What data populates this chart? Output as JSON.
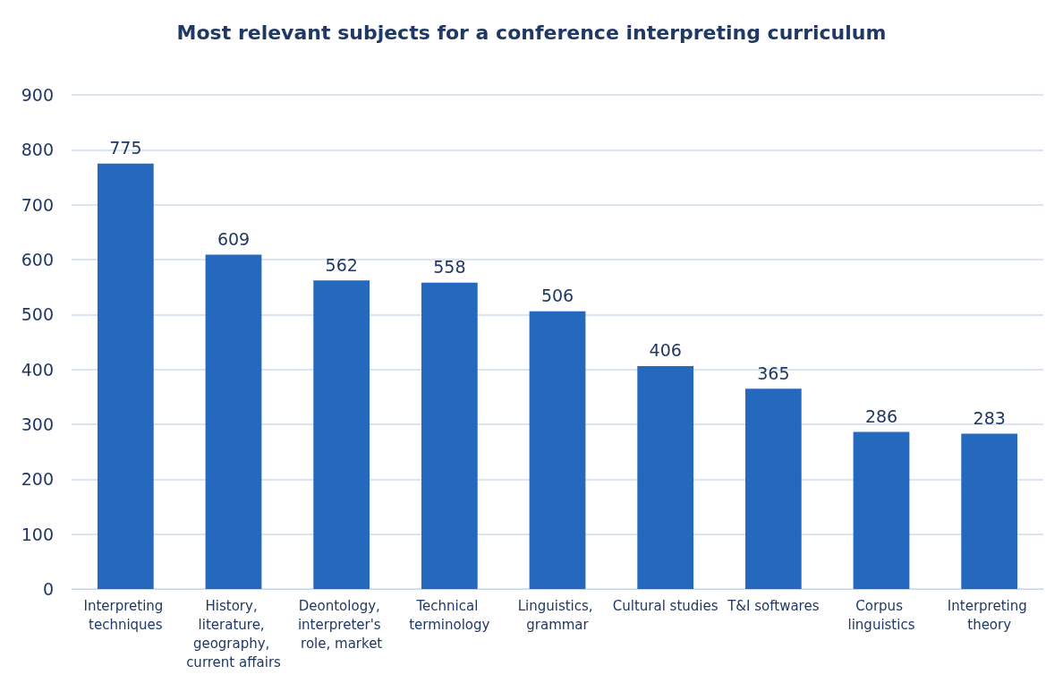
{
  "chart_data": {
    "type": "bar",
    "title": "Most relevant subjects for a conference interpreting curriculum",
    "categories": [
      "Interpreting techniques",
      "History, literature, geography, current affairs",
      "Deontology, interpreter's role, market",
      "Technical terminology",
      "Linguistics, grammar",
      "Cultural studies",
      "T&I softwares",
      "Corpus linguistics",
      "Interpreting theory"
    ],
    "values": [
      775,
      609,
      562,
      558,
      506,
      406,
      365,
      286,
      283
    ],
    "color": "#2469bd",
    "ylim": [
      0,
      900
    ],
    "yticks": [
      0,
      100,
      200,
      300,
      400,
      500,
      600,
      700,
      800,
      900
    ],
    "grid": "y",
    "data_labels": true
  }
}
